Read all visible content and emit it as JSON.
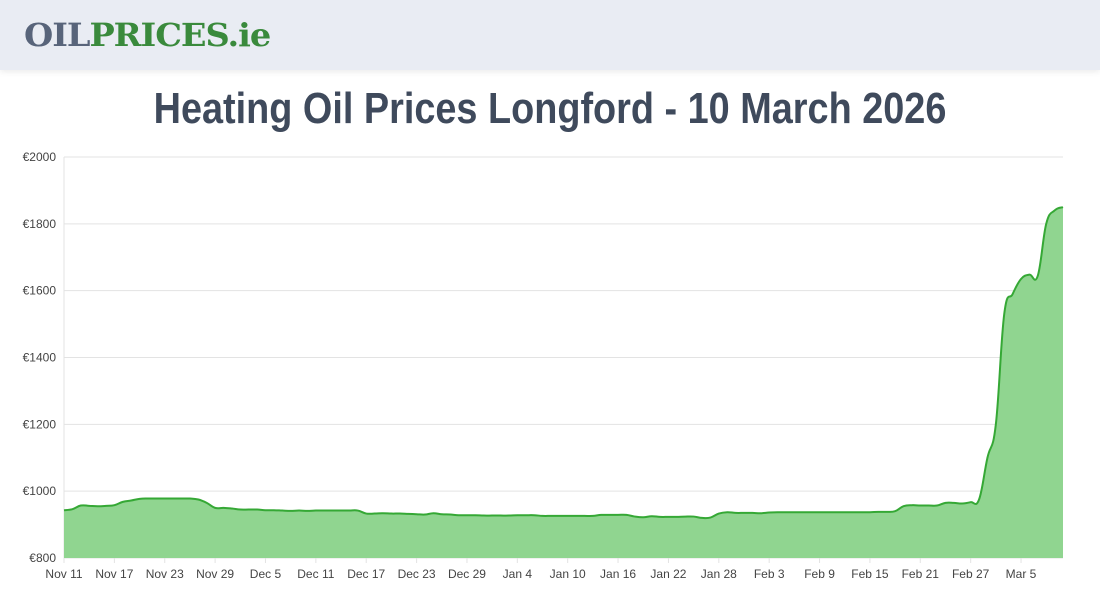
{
  "header": {
    "logo_part1": "OIL",
    "logo_part2": "PRICES.ie"
  },
  "page_title": "Heating Oil Prices Longford - 10 March 2026",
  "colors": {
    "line": "#35a835",
    "fill": "#90d590",
    "grid": "#e3e3e3"
  },
  "chart_data": {
    "type": "area",
    "title": "",
    "xlabel": "",
    "ylabel": "",
    "x_start": "Nov 11",
    "x_end": "Mar 10",
    "ylim": [
      800,
      2000
    ],
    "y_ticks": [
      "€800",
      "€1000",
      "€1200",
      "€1400",
      "€1600",
      "€1800",
      "€2000"
    ],
    "y_tick_values": [
      800,
      1000,
      1200,
      1400,
      1600,
      1800,
      2000
    ],
    "x_ticks": [
      "Nov 11",
      "Nov 17",
      "Nov 23",
      "Nov 29",
      "Dec 5",
      "Dec 11",
      "Dec 17",
      "Dec 23",
      "Dec 29",
      "Jan 4",
      "Jan 10",
      "Jan 16",
      "Jan 22",
      "Jan 28",
      "Feb 3",
      "Feb 9",
      "Feb 15",
      "Feb 21",
      "Feb 27",
      "Mar 5"
    ],
    "grid": true,
    "values": [
      943,
      946,
      957,
      956,
      955,
      956,
      958,
      968,
      972,
      977,
      978,
      978,
      978,
      978,
      978,
      978,
      975,
      965,
      950,
      950,
      948,
      945,
      945,
      945,
      943,
      943,
      942,
      941,
      942,
      941,
      942,
      942,
      942,
      942,
      942,
      942,
      933,
      933,
      934,
      933,
      933,
      932,
      931,
      930,
      934,
      931,
      930,
      928,
      928,
      928,
      927,
      927,
      927,
      927,
      928,
      928,
      928,
      926,
      926,
      926,
      926,
      926,
      926,
      926,
      929,
      929,
      929,
      929,
      924,
      922,
      925,
      923,
      923,
      923,
      924,
      924,
      920,
      921,
      933,
      937,
      935,
      935,
      935,
      934,
      936,
      937,
      937,
      937,
      937,
      937,
      937,
      937,
      937,
      937,
      937,
      937,
      937,
      938,
      938,
      940,
      955,
      958,
      957,
      957,
      957,
      965,
      965,
      963,
      967,
      975,
      1100,
      1200,
      1530,
      1590,
      1635,
      1648,
      1645,
      1800,
      1840,
      1850
    ]
  }
}
